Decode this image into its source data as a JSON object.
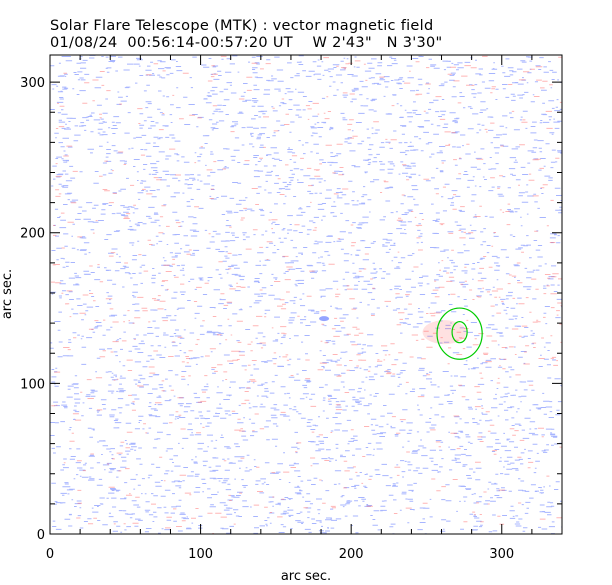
{
  "title": "Solar Flare Telescope (MTK) : vector magnetic field",
  "subtitle": "01/08/24  00:56:14-00:57:20 UT    W 2'43\"   N 3'30\"",
  "colors": {
    "positive": "#ff5a5a",
    "negative": "#3c5aff",
    "contour": "#00cc00",
    "frame": "#000000"
  },
  "chart_data": {
    "type": "heatmap",
    "xlabel": "arc sec.",
    "ylabel": "arc sec.",
    "xlim": [
      0,
      340
    ],
    "ylim": [
      0,
      318
    ],
    "xticks": [
      0,
      100,
      200,
      300
    ],
    "yticks": [
      0,
      100,
      200,
      300
    ],
    "contours": [
      {
        "level": "outer",
        "center": [
          272,
          133
        ],
        "rx": 15,
        "ry": 17
      },
      {
        "level": "inner",
        "center": [
          272,
          134
        ],
        "rx": 5,
        "ry": 7
      }
    ]
  }
}
